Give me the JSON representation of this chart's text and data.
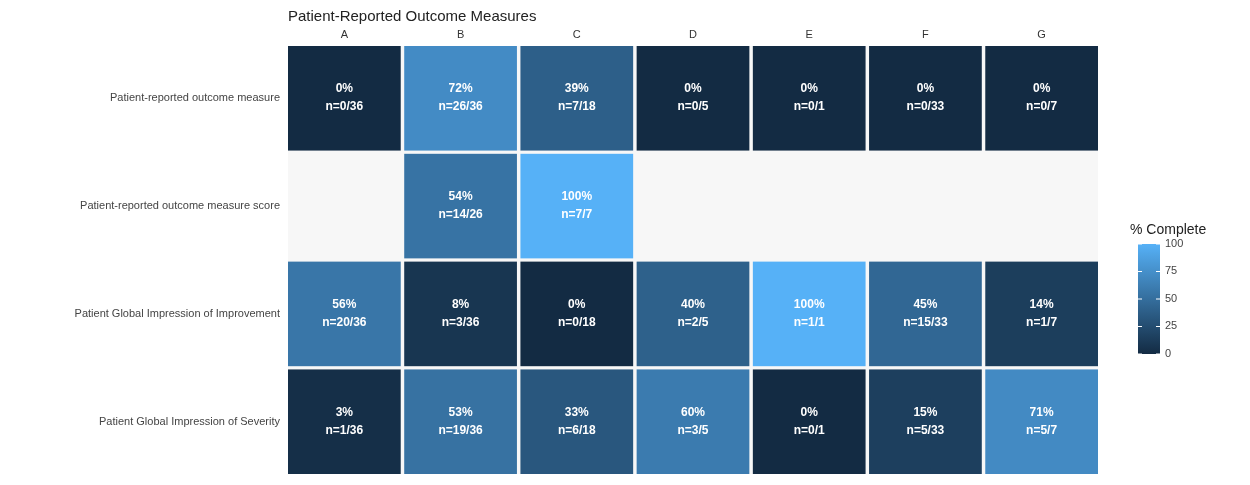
{
  "chart_data": {
    "type": "heatmap",
    "title": "Patient-Reported Outcome Measures",
    "legend_title": "% Complete",
    "categories": [
      "A",
      "B",
      "C",
      "D",
      "E",
      "F",
      "G"
    ],
    "y_categories": [
      "Patient-reported outcome measure",
      "Patient-reported outcome measure score",
      "Patient Global Impression of Improvement",
      "Patient Global Impression of Severity"
    ],
    "cells": [
      [
        0,
        72,
        39,
        0,
        0,
        0,
        0
      ],
      [
        null,
        54,
        100,
        null,
        null,
        null,
        null
      ],
      [
        56,
        8,
        0,
        40,
        100,
        45,
        14
      ],
      [
        3,
        53,
        33,
        60,
        0,
        15,
        71
      ]
    ],
    "cell_labels": [
      [
        "0%\nn=0/36",
        "72%\nn=26/36",
        "39%\nn=7/18",
        "0%\nn=0/5",
        "0%\nn=0/1",
        "0%\nn=0/33",
        "0%\nn=0/7"
      ],
      [
        null,
        "54%\nn=14/26",
        "100%\nn=7/7",
        null,
        null,
        null,
        null
      ],
      [
        "56%\nn=20/36",
        "8%\nn=3/36",
        "0%\nn=0/18",
        "40%\nn=2/5",
        "100%\nn=1/1",
        "45%\nn=15/33",
        "14%\nn=1/7"
      ],
      [
        "3%\nn=1/36",
        "53%\nn=19/36",
        "33%\nn=6/18",
        "60%\nn=3/5",
        "0%\nn=0/1",
        "15%\nn=5/33",
        "71%\nn=5/7"
      ]
    ],
    "clim": [
      0,
      100
    ],
    "cticks": [
      0,
      25,
      50,
      75,
      100
    ],
    "colors": [
      "#132b43",
      "#56b1f7"
    ]
  }
}
